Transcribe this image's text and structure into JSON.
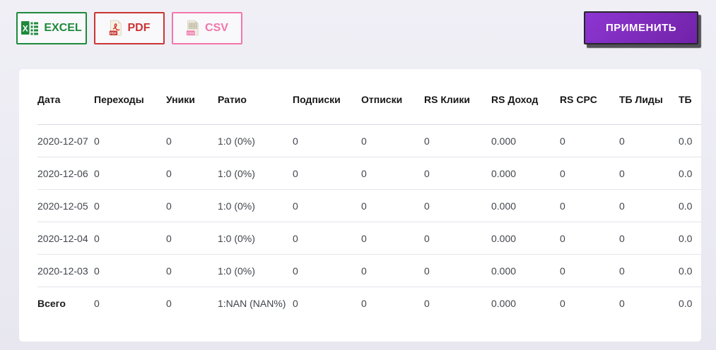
{
  "colors": {
    "excel_green": "#1e8a3c",
    "pdf_red": "#cb3434",
    "csv_pink": "#f276ab",
    "apply_purple_light": "#8d36d2",
    "apply_purple_dark": "#7122a8",
    "page_background": "#eae9f2",
    "card_background": "#ffffff"
  },
  "toolbar": {
    "export_buttons": [
      {
        "label": "EXCEL",
        "icon": "excel-file-icon"
      },
      {
        "label": "PDF",
        "icon": "pdf-file-icon"
      },
      {
        "label": "CSV",
        "icon": "csv-file-icon"
      }
    ],
    "apply_label": "ПРИМЕНИТЬ"
  },
  "table": {
    "columns": [
      "Дата",
      "Переходы",
      "Уники",
      "Ратио",
      "Подписки",
      "Отписки",
      "RS Клики",
      "RS Доход",
      "RS CPC",
      "ТБ Лиды",
      "ТБ"
    ],
    "rows": [
      [
        "2020-12-07",
        "0",
        "0",
        "1:0 (0%)",
        "0",
        "0",
        "0",
        "0.000",
        "0",
        "0",
        "0.0"
      ],
      [
        "2020-12-06",
        "0",
        "0",
        "1:0 (0%)",
        "0",
        "0",
        "0",
        "0.000",
        "0",
        "0",
        "0.0"
      ],
      [
        "2020-12-05",
        "0",
        "0",
        "1:0 (0%)",
        "0",
        "0",
        "0",
        "0.000",
        "0",
        "0",
        "0.0"
      ],
      [
        "2020-12-04",
        "0",
        "0",
        "1:0 (0%)",
        "0",
        "0",
        "0",
        "0.000",
        "0",
        "0",
        "0.0"
      ],
      [
        "2020-12-03",
        "0",
        "0",
        "1:0 (0%)",
        "0",
        "0",
        "0",
        "0.000",
        "0",
        "0",
        "0.0"
      ]
    ],
    "total_row": [
      "Всего",
      "0",
      "0",
      "1:NAN (NAN%)",
      "0",
      "0",
      "0",
      "0.000",
      "0",
      "0",
      "0.0"
    ]
  }
}
